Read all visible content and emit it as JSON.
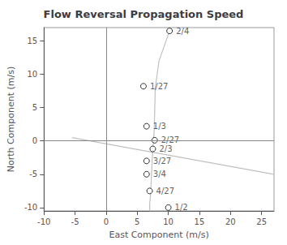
{
  "chart_data": {
    "type": "scatter",
    "title": "Flow Reversal Propagation Speed",
    "xlabel": "East Component (m/s)",
    "ylabel": "North Component (m/s)",
    "series": [
      {
        "type": "line",
        "color": "#c0c0c0",
        "x": [
          10.2,
          8.5,
          7.9,
          7.8,
          7.7,
          7.6,
          7.5,
          7.4,
          7.3,
          7.2,
          7.1,
          7.0,
          7.0,
          7.0,
          7.0,
          7.1,
          7.2,
          10.0
        ],
        "values": [
          16.5,
          12.0,
          8.0,
          4.0,
          1.0,
          0.0,
          -1.5,
          -3.0,
          -5.0,
          -7.0,
          -8.5,
          -9.5,
          -10.0,
          -10.2,
          -10.5,
          -10.5,
          -10.5,
          -10.5
        ]
      },
      {
        "type": "line",
        "color": "#c0c0c0",
        "x": [
          -5.5,
          27.0
        ],
        "values": [
          0.5,
          -5.0
        ]
      },
      {
        "type": "scatter",
        "marker": "circle",
        "color": "#000000",
        "x": [
          10.2,
          6.0,
          6.5,
          7.8,
          7.5,
          6.5,
          6.5,
          7.0,
          10.0
        ],
        "values": [
          16.5,
          8.2,
          2.2,
          0.1,
          -1.2,
          -3.0,
          -5.0,
          -7.5,
          -10.0
        ],
        "labels": [
          "2/4",
          "1/27",
          "1/3",
          "2/27",
          "2/3",
          "3/27",
          "3/4",
          "4/27",
          "1/2"
        ]
      }
    ],
    "xlim": [
      -10,
      27
    ],
    "ylim": [
      -10.5,
      17
    ],
    "xticks": [
      -10,
      -5,
      0,
      5,
      10,
      15,
      20,
      25
    ],
    "yticks": [
      -10,
      -5,
      0,
      5,
      10,
      15
    ],
    "grid": false
  }
}
